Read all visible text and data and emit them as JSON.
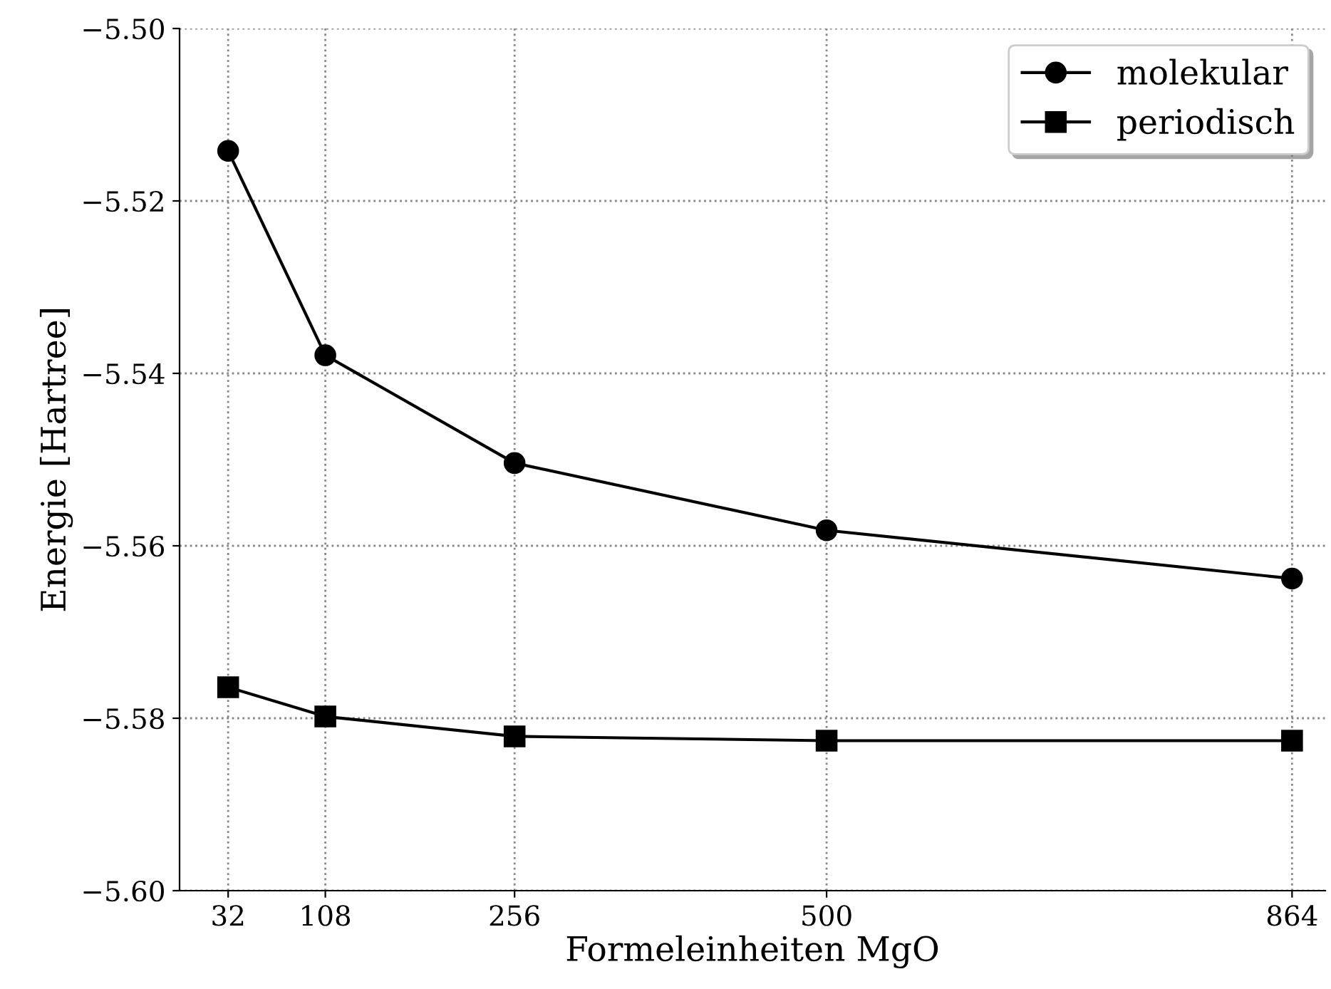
{
  "chart_data": {
    "type": "line",
    "xlabel": "Formeleinheiten MgO",
    "ylabel": "Energie [Hartree]",
    "x": [
      32,
      108,
      256,
      500,
      864
    ],
    "series": [
      {
        "name": "molekular",
        "color": "#000000",
        "marker": "circle",
        "values": [
          -5.5142,
          -5.5379,
          -5.5504,
          -5.5582,
          -5.5638
        ]
      },
      {
        "name": "periodisch",
        "color": "#000000",
        "marker": "square",
        "values": [
          -5.5764,
          -5.5798,
          -5.5821,
          -5.5826,
          -5.5826
        ]
      }
    ],
    "xlim": [
      -6,
      890
    ],
    "xticks": [
      32,
      108,
      256,
      500,
      864
    ],
    "ylim": [
      -5.6,
      -5.5
    ],
    "yticks": [
      {
        "value": -5.6,
        "label": "−5.60"
      },
      {
        "value": -5.58,
        "label": "−5.58"
      },
      {
        "value": -5.56,
        "label": "−5.56"
      },
      {
        "value": -5.54,
        "label": "−5.54"
      },
      {
        "value": -5.52,
        "label": "−5.52"
      },
      {
        "value": -5.5,
        "label": "−5.50"
      }
    ],
    "grid": true,
    "legend": "top right",
    "line_style": "solid"
  }
}
